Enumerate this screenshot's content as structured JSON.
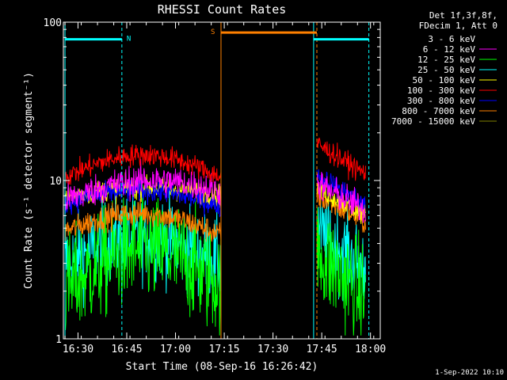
{
  "chart_data": {
    "type": "line",
    "title": "RHESSI Count Rates",
    "xlabel": "Start Time (08-Sep-16 16:26:42)",
    "ylabel": "Count Rate (s⁻¹ detector segment⁻¹)",
    "yscale": "log",
    "ylim": [
      1,
      100
    ],
    "xlim_minutes_since_1626": [
      -0.5,
      97
    ],
    "x_ticks": [
      "16:30",
      "16:45",
      "17:00",
      "17:15",
      "17:30",
      "17:45",
      "18:00"
    ],
    "y_ticks": [
      "1",
      "10",
      "100"
    ],
    "legend": {
      "header": [
        "Det 1f,3f,8f,",
        "FDecim 1, Att 0"
      ],
      "placement": "right-outside"
    },
    "series": [
      {
        "name": "3 - 6 keV",
        "color": "#000000",
        "seg1_start": 25,
        "seg1_mid": 27.5,
        "seg1_end": 27,
        "seg2_start": 25,
        "seg2_end": 23,
        "noise": 0.05
      },
      {
        "name": "6 - 12 keV",
        "color": "#ff00ff",
        "seg1_start": 7.5,
        "seg1_mid": 10,
        "seg1_end": 8.5,
        "seg2_start": 9.5,
        "seg2_end": 6.5,
        "noise": 0.1
      },
      {
        "name": "12 - 25 keV",
        "color": "#00ff00",
        "seg1_start": 2.0,
        "seg1_mid": 3.6,
        "seg1_end": 2.2,
        "seg2_start": 3.5,
        "seg2_end": 1.8,
        "noise": 0.34
      },
      {
        "name": "25 - 50 keV",
        "color": "#00ffff",
        "seg1_start": 3.0,
        "seg1_mid": 4.4,
        "seg1_end": 3.0,
        "seg2_start": 4.8,
        "seg2_end": 2.8,
        "noise": 0.26
      },
      {
        "name": "50 - 100 keV",
        "color": "#ffff00",
        "seg1_start": 7.8,
        "seg1_mid": 9.0,
        "seg1_end": 8.0,
        "seg2_start": 9.0,
        "seg2_end": 6.0,
        "noise": 0.07
      },
      {
        "name": "100 - 300 keV",
        "color": "#ff0000",
        "seg1_start": 10.5,
        "seg1_mid": 14.5,
        "seg1_end": 10.5,
        "seg2_start": 17,
        "seg2_end": 11,
        "noise": 0.07
      },
      {
        "name": "300 - 800 keV",
        "color": "#0000ff",
        "seg1_start": 7.2,
        "seg1_mid": 8.6,
        "seg1_end": 6.8,
        "seg2_start": 11,
        "seg2_end": 7,
        "noise": 0.07
      },
      {
        "name": "800 - 7000 keV",
        "color": "#ff8000",
        "seg1_start": 4.8,
        "seg1_mid": 6.2,
        "seg1_end": 4.5,
        "seg2_start": 8.0,
        "seg2_end": 5.5,
        "noise": 0.08
      },
      {
        "name": "7000 - 15000 keV",
        "color": "#808000",
        "seg1_start": 0,
        "seg1_mid": 0,
        "seg1_end": 0,
        "seg2_start": 0,
        "seg2_end": 0,
        "noise": 0
      }
    ],
    "data_segments_minutes_since_1626": [
      [
        0,
        48
      ],
      [
        77.5,
        92.5
      ]
    ],
    "annotations": {
      "night": {
        "label": "N",
        "y": 78,
        "spans_minutes_since_1626": [
          [
            0,
            17.5
          ],
          [
            76.5,
            93.5
          ]
        ],
        "color": "#00ffff"
      },
      "saa": {
        "label": "S",
        "y": 86,
        "span_minutes_since_1626": [
          48,
          77.5
        ],
        "color": "#ff8000"
      },
      "vertical_markers": [
        {
          "t": 0,
          "color": "#00ffff",
          "style": "solid"
        },
        {
          "t": 17.5,
          "color": "#00ffff",
          "style": "dashed"
        },
        {
          "t": 48,
          "color": "#ff8000",
          "style": "solid"
        },
        {
          "t": 76.5,
          "color": "#00ffff",
          "style": "solid"
        },
        {
          "t": 77.5,
          "color": "#ff8000",
          "style": "dashed"
        },
        {
          "t": 93.5,
          "color": "#00ffff",
          "style": "dashed"
        }
      ]
    },
    "footer": "1-Sep-2022 10:10"
  }
}
